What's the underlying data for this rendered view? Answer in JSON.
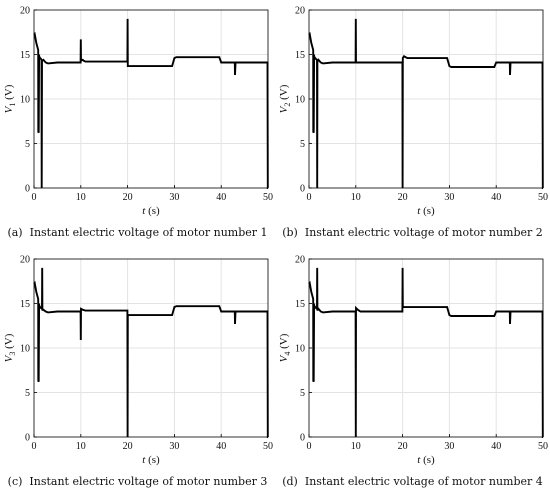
{
  "chart_data": [
    {
      "type": "line",
      "panel_label": "(a)",
      "caption": "Instant electric voltage of motor number 1",
      "ylabel": "V_1 (V)",
      "ylabel_base": "V",
      "ylabel_sub": "1",
      "ylabel_unit": "(V)",
      "xlabel_var": "t",
      "xlabel_unit": "(s)",
      "xlim": [
        0,
        50
      ],
      "ylim": [
        0,
        20
      ],
      "xticks": [
        0,
        10,
        20,
        30,
        40,
        50
      ],
      "yticks": [
        0,
        5,
        10,
        15,
        20
      ],
      "grid": true,
      "series": [
        {
          "color": "#000000",
          "x": [
            0,
            0.15,
            0.5,
            0.9,
            0.92,
            1.0,
            1.08,
            1.1,
            1.3,
            1.5,
            1.6,
            1.65,
            1.7,
            1.75,
            1.8,
            2.0,
            2.5,
            3,
            5,
            8,
            9.95,
            10,
            10.05,
            10.4,
            10.6,
            11,
            13,
            15,
            19.95,
            20,
            20.05,
            20.3,
            22,
            25,
            29.5,
            30,
            30.4,
            33,
            36,
            39,
            39.6,
            40,
            42,
            42.9,
            42.95,
            43.05,
            43.1,
            43.5,
            45,
            47,
            49.5,
            49.9,
            49.95,
            50
          ],
          "y": [
            17.2,
            17.3,
            16.3,
            15.5,
            6.3,
            6.2,
            15.0,
            14.8,
            14.6,
            14.5,
            14.4,
            0.0,
            14.2,
            14.3,
            14.3,
            14.4,
            14.1,
            14.0,
            14.1,
            14.1,
            14.1,
            16.7,
            14.3,
            14.4,
            14.3,
            14.2,
            14.2,
            14.2,
            14.2,
            19.0,
            13.7,
            13.7,
            13.7,
            13.7,
            13.7,
            14.6,
            14.7,
            14.7,
            14.7,
            14.7,
            14.7,
            14.1,
            14.1,
            14.1,
            12.7,
            14.0,
            14.1,
            14.1,
            14.1,
            14.1,
            14.1,
            14.1,
            0.0,
            0.0
          ]
        }
      ]
    },
    {
      "type": "line",
      "panel_label": "(b)",
      "caption": "Instant electric voltage of motor number 2",
      "ylabel": "V_2 (V)",
      "ylabel_base": "V",
      "ylabel_sub": "2",
      "ylabel_unit": "(V)",
      "xlabel_var": "t",
      "xlabel_unit": "(s)",
      "xlim": [
        0,
        50
      ],
      "ylim": [
        0,
        20
      ],
      "xticks": [
        0,
        10,
        20,
        30,
        40,
        50
      ],
      "yticks": [
        0,
        5,
        10,
        15,
        20
      ],
      "grid": true,
      "series": [
        {
          "color": "#000000",
          "x": [
            0,
            0.15,
            0.5,
            0.9,
            0.92,
            1.0,
            1.08,
            1.1,
            1.3,
            1.5,
            1.7,
            1.75,
            1.8,
            1.85,
            2.0,
            2.5,
            3,
            5,
            8,
            9.95,
            10,
            10.05,
            10.4,
            11,
            13,
            15,
            19.95,
            20,
            20.05,
            20.3,
            21,
            25,
            29.5,
            30,
            30.4,
            33,
            36,
            39,
            39.6,
            40,
            42,
            42.9,
            42.95,
            43.05,
            43.1,
            43.5,
            45,
            47,
            49.5,
            49.9,
            49.95,
            50
          ],
          "y": [
            17.2,
            17.3,
            16.3,
            15.5,
            6.3,
            6.2,
            15.0,
            14.8,
            14.6,
            14.5,
            14.4,
            0.0,
            14.2,
            14.3,
            14.4,
            14.1,
            14.0,
            14.1,
            14.1,
            14.1,
            19.0,
            14.1,
            14.1,
            14.1,
            14.1,
            14.1,
            14.1,
            0.0,
            14.6,
            14.8,
            14.6,
            14.6,
            14.6,
            13.7,
            13.6,
            13.6,
            13.6,
            13.6,
            13.6,
            14.1,
            14.1,
            14.1,
            12.7,
            14.0,
            14.1,
            14.1,
            14.1,
            14.1,
            14.1,
            14.1,
            0.0,
            0.0
          ]
        }
      ]
    },
    {
      "type": "line",
      "panel_label": "(c)",
      "caption": "Instant electric voltage of motor number 3",
      "ylabel": "V_3 (V)",
      "ylabel_base": "V",
      "ylabel_sub": "3",
      "ylabel_unit": "(V)",
      "xlabel_var": "t",
      "xlabel_unit": "(s)",
      "xlim": [
        0,
        50
      ],
      "ylim": [
        0,
        20
      ],
      "xticks": [
        0,
        10,
        20,
        30,
        40,
        50
      ],
      "yticks": [
        0,
        5,
        10,
        15,
        20
      ],
      "grid": true,
      "series": [
        {
          "color": "#000000",
          "x": [
            0,
            0.15,
            0.5,
            0.9,
            0.92,
            1.0,
            1.08,
            1.1,
            1.3,
            1.5,
            1.7,
            1.75,
            1.8,
            1.85,
            2.0,
            2.5,
            3,
            5,
            8,
            9.95,
            10,
            10.05,
            10.4,
            11,
            13,
            15,
            19.95,
            20,
            20.05,
            20.3,
            22,
            25,
            29.5,
            30,
            30.4,
            33,
            36,
            39,
            39.6,
            40,
            42,
            42.9,
            42.95,
            43.05,
            43.1,
            43.5,
            45,
            47,
            49.5,
            49.9,
            49.95,
            50
          ],
          "y": [
            17.2,
            17.3,
            16.3,
            15.5,
            6.3,
            6.2,
            15.0,
            14.8,
            14.6,
            14.5,
            14.4,
            19.0,
            14.2,
            14.3,
            14.3,
            14.1,
            14.0,
            14.1,
            14.1,
            14.1,
            10.9,
            14.4,
            14.3,
            14.2,
            14.2,
            14.2,
            14.2,
            0.0,
            13.7,
            13.7,
            13.7,
            13.7,
            13.7,
            14.6,
            14.7,
            14.7,
            14.7,
            14.7,
            14.7,
            14.1,
            14.1,
            14.1,
            12.7,
            14.0,
            14.1,
            14.1,
            14.1,
            14.1,
            14.1,
            14.1,
            0.0,
            0.0
          ]
        }
      ]
    },
    {
      "type": "line",
      "panel_label": "(d)",
      "caption": "Instant electric voltage of motor number 4",
      "ylabel": "V_4 (V)",
      "ylabel_base": "V",
      "ylabel_sub": "4",
      "ylabel_unit": "(V)",
      "xlabel_var": "t",
      "xlabel_unit": "(s)",
      "xlim": [
        0,
        50
      ],
      "ylim": [
        0,
        20
      ],
      "xticks": [
        0,
        10,
        20,
        30,
        40,
        50
      ],
      "yticks": [
        0,
        5,
        10,
        15,
        20
      ],
      "grid": true,
      "series": [
        {
          "color": "#000000",
          "x": [
            0,
            0.15,
            0.5,
            0.9,
            0.92,
            1.0,
            1.08,
            1.1,
            1.3,
            1.5,
            1.7,
            1.75,
            1.8,
            1.85,
            2.0,
            2.5,
            3,
            5,
            8,
            9.95,
            10,
            10.05,
            10.4,
            11,
            13,
            15,
            19.95,
            20,
            20.05,
            20.3,
            21,
            25,
            29.5,
            30,
            30.4,
            33,
            36,
            39,
            39.6,
            40,
            42,
            42.9,
            42.95,
            43.05,
            43.1,
            43.5,
            45,
            47,
            49.5,
            49.9,
            49.95,
            50
          ],
          "y": [
            17.2,
            17.3,
            16.3,
            15.5,
            6.3,
            6.2,
            15.0,
            14.8,
            14.6,
            14.5,
            14.4,
            19.0,
            14.2,
            14.3,
            14.4,
            14.1,
            14.0,
            14.1,
            14.1,
            14.1,
            0.0,
            14.5,
            14.3,
            14.1,
            14.1,
            14.1,
            14.1,
            19.0,
            14.6,
            14.6,
            14.6,
            14.6,
            14.6,
            13.7,
            13.6,
            13.6,
            13.6,
            13.6,
            13.6,
            14.1,
            14.1,
            14.1,
            12.7,
            14.0,
            14.1,
            14.1,
            14.1,
            14.1,
            14.1,
            14.1,
            0.0,
            0.0
          ]
        }
      ]
    }
  ]
}
